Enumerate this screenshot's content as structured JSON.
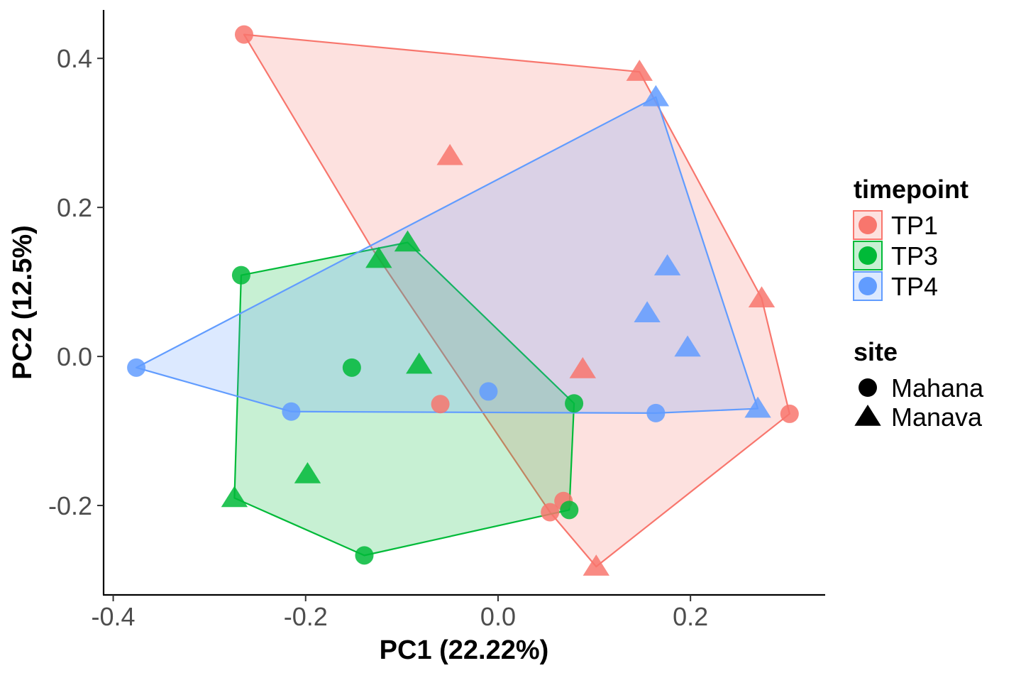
{
  "chart_data": {
    "type": "scatter",
    "xlabel": "PC1 (22.22%)",
    "ylabel": "PC2 (12.5%)",
    "xlim": [
      -0.41,
      0.34
    ],
    "ylim": [
      -0.32,
      0.465
    ],
    "xticks": [
      -0.4,
      -0.2,
      0.0,
      0.2
    ],
    "xtick_labels": [
      "-0.4",
      "-0.2",
      "0.0",
      "0.2"
    ],
    "yticks": [
      -0.2,
      0.0,
      0.2,
      0.4
    ],
    "ytick_labels": [
      "-0.2",
      "0.0",
      "0.2",
      "0.4"
    ],
    "grid": false,
    "legend_placement": "right",
    "color_legend": {
      "title": "timepoint",
      "entries": [
        {
          "label": "TP1",
          "color": "#F8766D"
        },
        {
          "label": "TP3",
          "color": "#00BA38"
        },
        {
          "label": "TP4",
          "color": "#619CFF"
        }
      ]
    },
    "shape_legend": {
      "title": "site",
      "entries": [
        {
          "label": "Mahana",
          "shape": "circle"
        },
        {
          "label": "Manava",
          "shape": "triangle"
        }
      ]
    },
    "series": [
      {
        "name": "TP1",
        "color": "#F8766D",
        "hull": [
          [
            -0.264,
            0.432
          ],
          [
            0.147,
            0.382
          ],
          [
            0.274,
            0.078
          ],
          [
            0.303,
            -0.077
          ],
          [
            0.102,
            -0.282
          ],
          [
            0.054,
            -0.209
          ],
          [
            -0.131,
            0.145
          ]
        ],
        "points": [
          {
            "x": -0.264,
            "y": 0.432,
            "shape": "circle"
          },
          {
            "x": 0.147,
            "y": 0.382,
            "shape": "triangle"
          },
          {
            "x": -0.05,
            "y": 0.269,
            "shape": "triangle"
          },
          {
            "x": 0.274,
            "y": 0.078,
            "shape": "triangle"
          },
          {
            "x": 0.088,
            "y": -0.017,
            "shape": "triangle"
          },
          {
            "x": -0.06,
            "y": -0.064,
            "shape": "circle"
          },
          {
            "x": 0.303,
            "y": -0.077,
            "shape": "circle"
          },
          {
            "x": 0.068,
            "y": -0.194,
            "shape": "circle"
          },
          {
            "x": 0.054,
            "y": -0.209,
            "shape": "circle"
          },
          {
            "x": 0.102,
            "y": -0.282,
            "shape": "triangle"
          }
        ]
      },
      {
        "name": "TP3",
        "color": "#00BA38",
        "hull": [
          [
            -0.267,
            0.109
          ],
          [
            -0.094,
            0.153
          ],
          [
            0.079,
            -0.063
          ],
          [
            0.074,
            -0.206
          ],
          [
            -0.139,
            -0.267
          ],
          [
            -0.274,
            -0.19
          ]
        ],
        "points": [
          {
            "x": -0.267,
            "y": 0.109,
            "shape": "circle"
          },
          {
            "x": -0.094,
            "y": 0.153,
            "shape": "triangle"
          },
          {
            "x": -0.124,
            "y": 0.131,
            "shape": "triangle"
          },
          {
            "x": -0.152,
            "y": -0.015,
            "shape": "circle"
          },
          {
            "x": -0.082,
            "y": -0.011,
            "shape": "triangle"
          },
          {
            "x": 0.079,
            "y": -0.063,
            "shape": "circle"
          },
          {
            "x": -0.198,
            "y": -0.158,
            "shape": "triangle"
          },
          {
            "x": -0.274,
            "y": -0.19,
            "shape": "triangle"
          },
          {
            "x": 0.074,
            "y": -0.206,
            "shape": "circle"
          },
          {
            "x": -0.139,
            "y": -0.267,
            "shape": "circle"
          }
        ]
      },
      {
        "name": "TP4",
        "color": "#619CFF",
        "hull": [
          [
            -0.376,
            -0.015
          ],
          [
            0.164,
            0.348
          ],
          [
            0.27,
            -0.07
          ],
          [
            0.164,
            -0.076
          ],
          [
            -0.215,
            -0.074
          ]
        ],
        "points": [
          {
            "x": -0.376,
            "y": -0.015,
            "shape": "circle"
          },
          {
            "x": 0.164,
            "y": 0.348,
            "shape": "triangle"
          },
          {
            "x": 0.176,
            "y": 0.121,
            "shape": "triangle"
          },
          {
            "x": 0.155,
            "y": 0.058,
            "shape": "triangle"
          },
          {
            "x": 0.197,
            "y": 0.012,
            "shape": "triangle"
          },
          {
            "x": -0.01,
            "y": -0.047,
            "shape": "circle"
          },
          {
            "x": -0.215,
            "y": -0.074,
            "shape": "circle"
          },
          {
            "x": 0.164,
            "y": -0.076,
            "shape": "circle"
          },
          {
            "x": 0.27,
            "y": -0.07,
            "shape": "triangle"
          }
        ]
      }
    ]
  }
}
